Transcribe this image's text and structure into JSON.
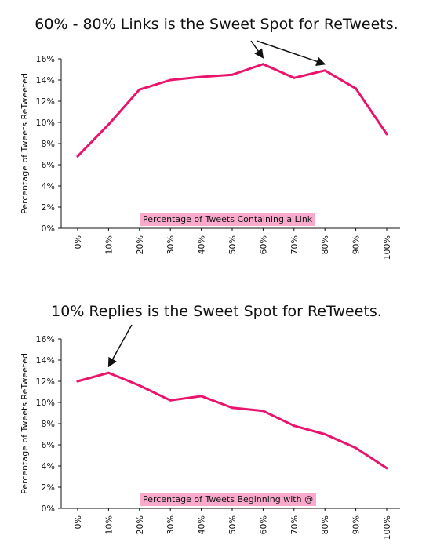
{
  "chart_data": [
    {
      "type": "line",
      "title": "60% - 80% Links is the Sweet Spot for ReTweets.",
      "xlabel": "Percentage of Tweets Containing a Link",
      "ylabel": "Percentage of Tweets ReTweeted",
      "categories": [
        "0%",
        "10%",
        "20%",
        "30%",
        "40%",
        "50%",
        "60%",
        "70%",
        "80%",
        "90%",
        "100%"
      ],
      "values": [
        6.8,
        9.8,
        13.1,
        14.0,
        14.3,
        14.5,
        15.5,
        14.2,
        14.9,
        13.2,
        8.9
      ],
      "y_ticks": [
        "0%",
        "2%",
        "4%",
        "6%",
        "8%",
        "10%",
        "12%",
        "14%",
        "16%"
      ],
      "ylim": [
        0,
        16
      ],
      "grid": false,
      "series_color": "#e8146e",
      "annotation_arrows_to": [
        "60%",
        "80%"
      ]
    },
    {
      "type": "line",
      "title": "10% Replies is the Sweet Spot for ReTweets.",
      "xlabel": "Percentage of Tweets Beginning with @",
      "ylabel": "Percentage of Tweets ReTweeted",
      "categories": [
        "0%",
        "10%",
        "20%",
        "30%",
        "40%",
        "50%",
        "60%",
        "70%",
        "80%",
        "90%",
        "100%"
      ],
      "values": [
        12.0,
        12.8,
        11.6,
        10.2,
        10.6,
        9.5,
        9.2,
        7.8,
        7.0,
        5.7,
        3.8
      ],
      "y_ticks": [
        "0%",
        "2%",
        "4%",
        "6%",
        "8%",
        "10%",
        "12%",
        "14%",
        "16%"
      ],
      "ylim": [
        0,
        16
      ],
      "grid": false,
      "series_color": "#e8146e",
      "annotation_arrows_to": [
        "10%"
      ]
    }
  ]
}
